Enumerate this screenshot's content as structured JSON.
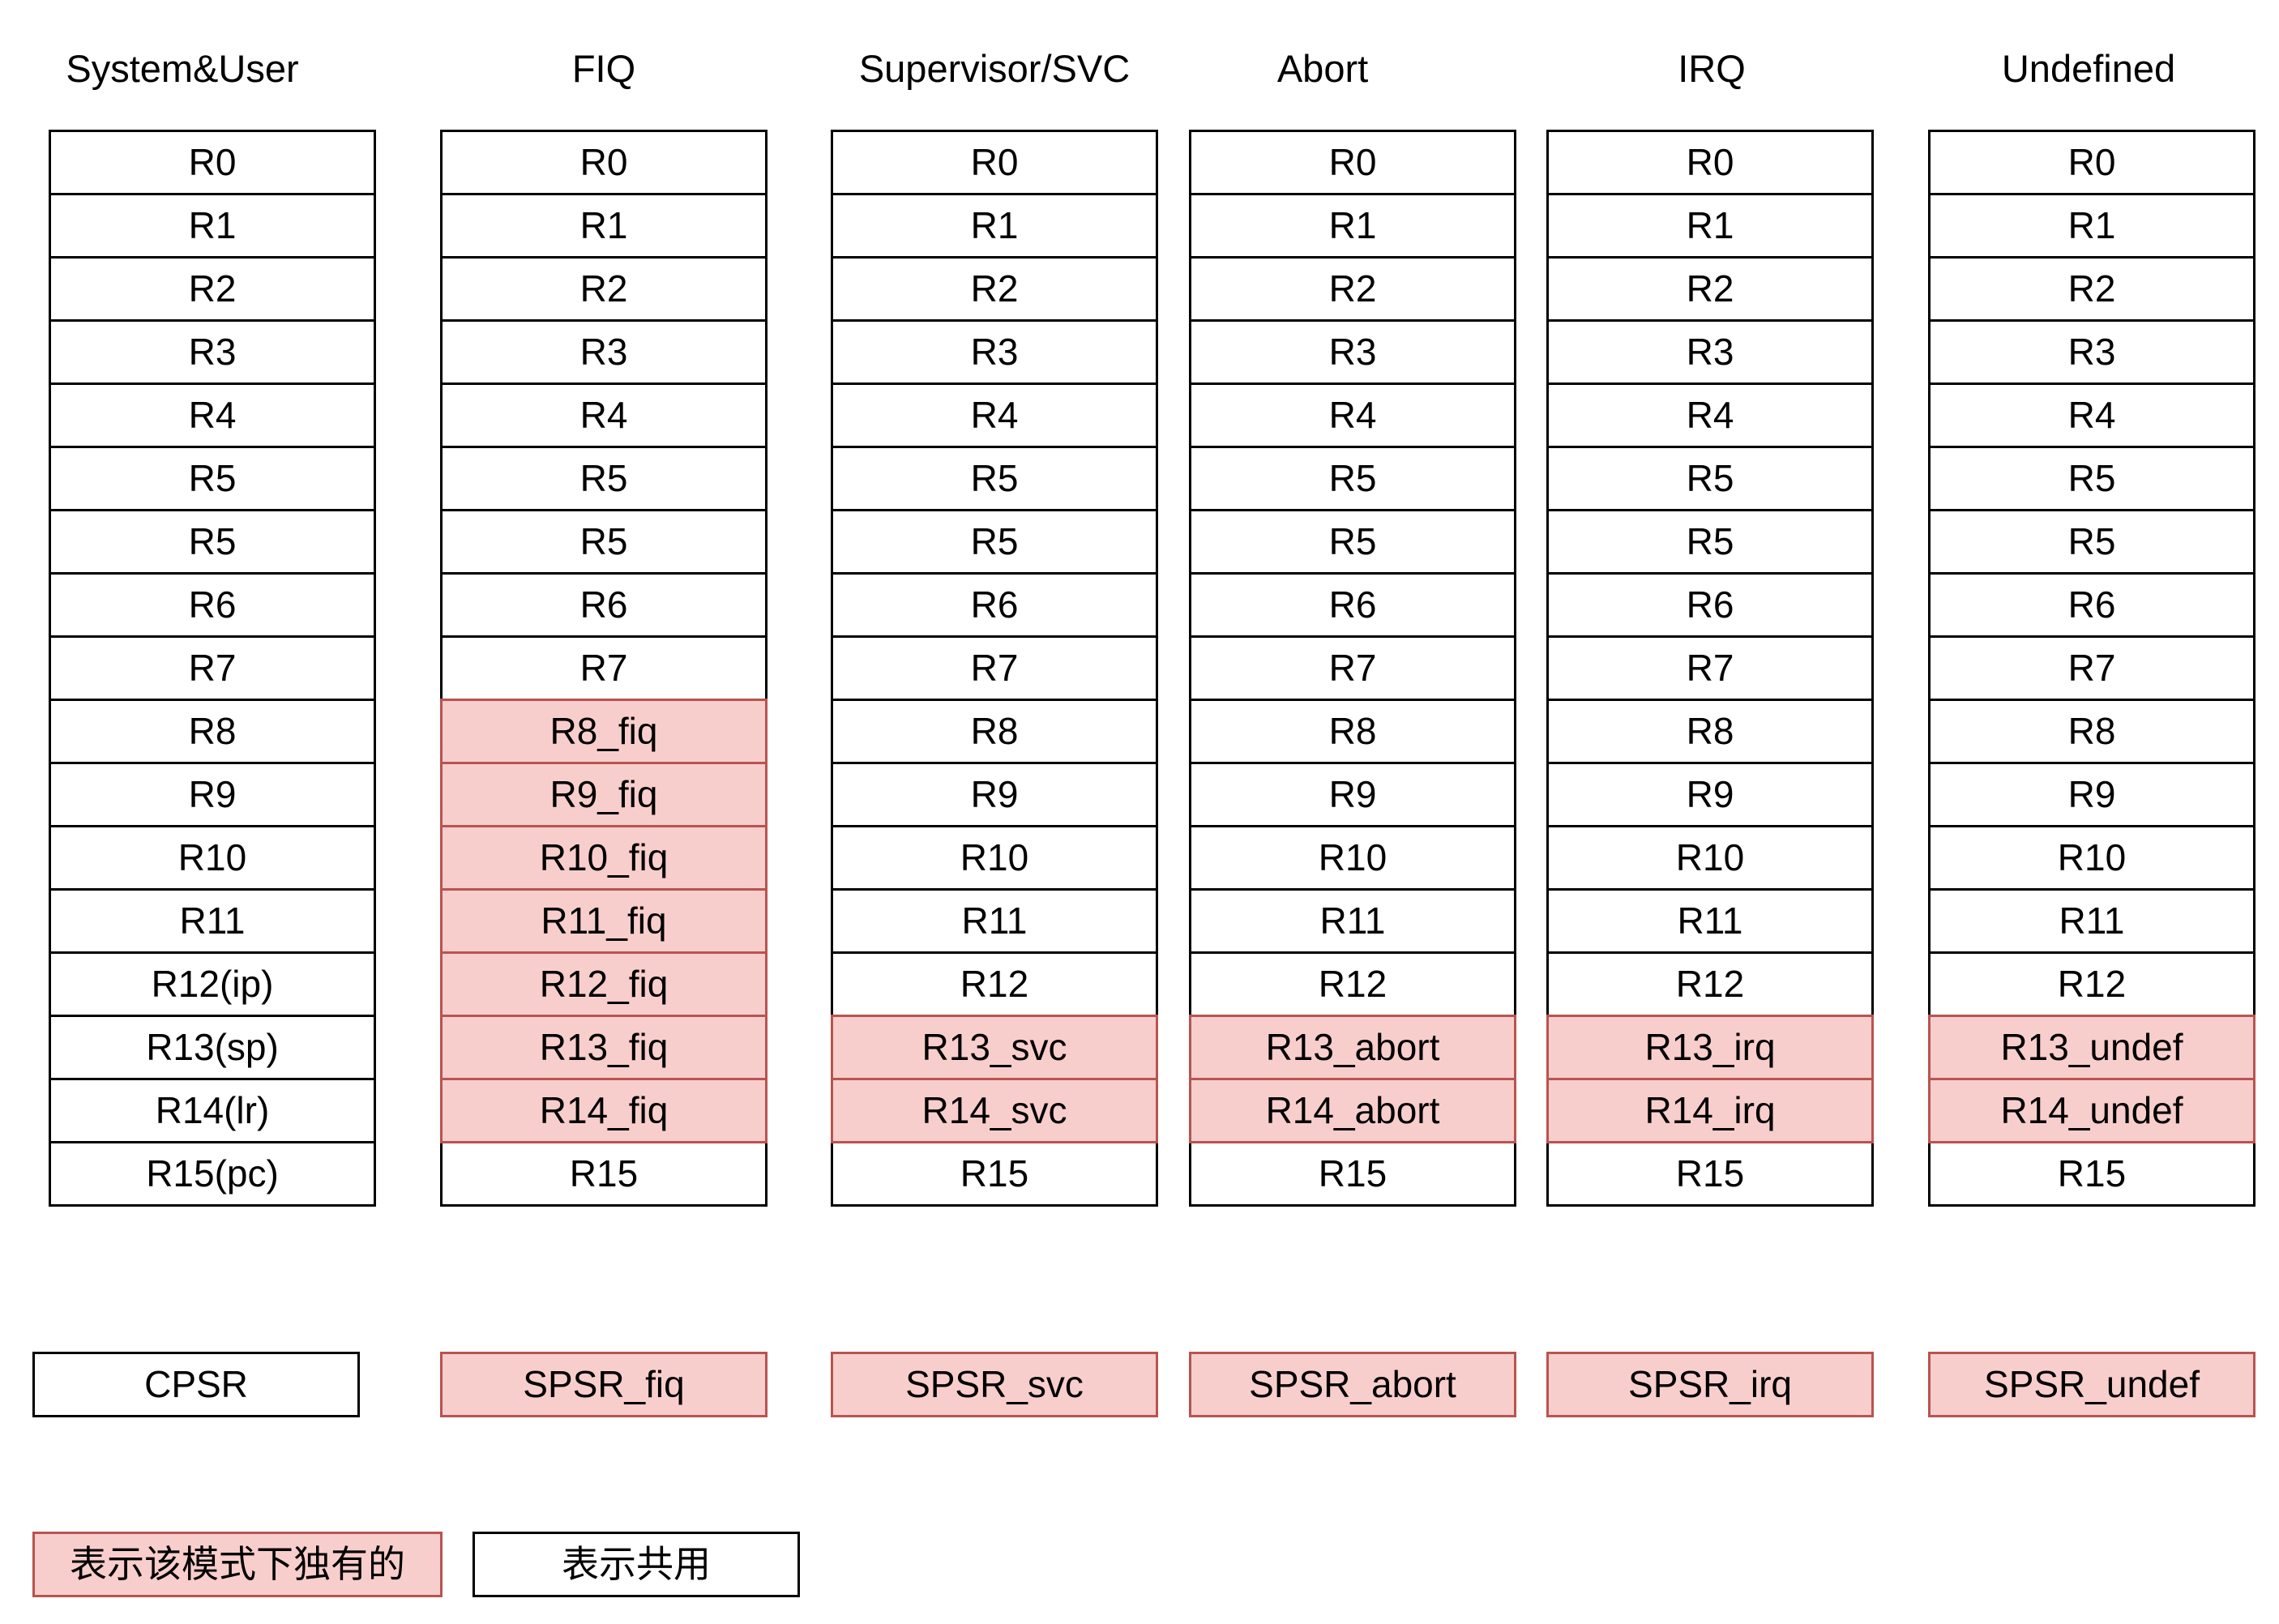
{
  "colors": {
    "banked_fill": "#f8cecc",
    "banked_border": "#b85450",
    "shared_fill": "#ffffff",
    "shared_border": "#000000"
  },
  "modes": [
    {
      "title": "System&User",
      "registers": [
        {
          "label": "R0",
          "banked": false
        },
        {
          "label": "R1",
          "banked": false
        },
        {
          "label": "R2",
          "banked": false
        },
        {
          "label": "R3",
          "banked": false
        },
        {
          "label": "R4",
          "banked": false
        },
        {
          "label": "R5",
          "banked": false
        },
        {
          "label": "R5",
          "banked": false
        },
        {
          "label": "R6",
          "banked": false
        },
        {
          "label": "R7",
          "banked": false
        },
        {
          "label": "R8",
          "banked": false
        },
        {
          "label": "R9",
          "banked": false
        },
        {
          "label": "R10",
          "banked": false
        },
        {
          "label": "R11",
          "banked": false
        },
        {
          "label": "R12(ip)",
          "banked": false
        },
        {
          "label": "R13(sp)",
          "banked": false
        },
        {
          "label": "R14(lr)",
          "banked": false
        },
        {
          "label": "R15(pc)",
          "banked": false
        }
      ],
      "psr": {
        "label": "CPSR",
        "banked": false
      }
    },
    {
      "title": "FIQ",
      "registers": [
        {
          "label": "R0",
          "banked": false
        },
        {
          "label": "R1",
          "banked": false
        },
        {
          "label": "R2",
          "banked": false
        },
        {
          "label": "R3",
          "banked": false
        },
        {
          "label": "R4",
          "banked": false
        },
        {
          "label": "R5",
          "banked": false
        },
        {
          "label": "R5",
          "banked": false
        },
        {
          "label": "R6",
          "banked": false
        },
        {
          "label": "R7",
          "banked": false
        },
        {
          "label": "R8_fiq",
          "banked": true
        },
        {
          "label": "R9_fiq",
          "banked": true
        },
        {
          "label": "R10_fiq",
          "banked": true
        },
        {
          "label": "R11_fiq",
          "banked": true
        },
        {
          "label": "R12_fiq",
          "banked": true
        },
        {
          "label": "R13_fiq",
          "banked": true
        },
        {
          "label": "R14_fiq",
          "banked": true
        },
        {
          "label": "R15",
          "banked": false
        }
      ],
      "psr": {
        "label": "SPSR_fiq",
        "banked": true
      }
    },
    {
      "title": "Supervisor/SVC",
      "registers": [
        {
          "label": "R0",
          "banked": false
        },
        {
          "label": "R1",
          "banked": false
        },
        {
          "label": "R2",
          "banked": false
        },
        {
          "label": "R3",
          "banked": false
        },
        {
          "label": "R4",
          "banked": false
        },
        {
          "label": "R5",
          "banked": false
        },
        {
          "label": "R5",
          "banked": false
        },
        {
          "label": "R6",
          "banked": false
        },
        {
          "label": "R7",
          "banked": false
        },
        {
          "label": "R8",
          "banked": false
        },
        {
          "label": "R9",
          "banked": false
        },
        {
          "label": "R10",
          "banked": false
        },
        {
          "label": "R11",
          "banked": false
        },
        {
          "label": "R12",
          "banked": false
        },
        {
          "label": "R13_svc",
          "banked": true
        },
        {
          "label": "R14_svc",
          "banked": true
        },
        {
          "label": "R15",
          "banked": false
        }
      ],
      "psr": {
        "label": "SPSR_svc",
        "banked": true
      }
    },
    {
      "title": "Abort",
      "registers": [
        {
          "label": "R0",
          "banked": false
        },
        {
          "label": "R1",
          "banked": false
        },
        {
          "label": "R2",
          "banked": false
        },
        {
          "label": "R3",
          "banked": false
        },
        {
          "label": "R4",
          "banked": false
        },
        {
          "label": "R5",
          "banked": false
        },
        {
          "label": "R5",
          "banked": false
        },
        {
          "label": "R6",
          "banked": false
        },
        {
          "label": "R7",
          "banked": false
        },
        {
          "label": "R8",
          "banked": false
        },
        {
          "label": "R9",
          "banked": false
        },
        {
          "label": "R10",
          "banked": false
        },
        {
          "label": "R11",
          "banked": false
        },
        {
          "label": "R12",
          "banked": false
        },
        {
          "label": "R13_abort",
          "banked": true
        },
        {
          "label": "R14_abort",
          "banked": true
        },
        {
          "label": "R15",
          "banked": false
        }
      ],
      "psr": {
        "label": "SPSR_abort",
        "banked": true
      }
    },
    {
      "title": "IRQ",
      "registers": [
        {
          "label": "R0",
          "banked": false
        },
        {
          "label": "R1",
          "banked": false
        },
        {
          "label": "R2",
          "banked": false
        },
        {
          "label": "R3",
          "banked": false
        },
        {
          "label": "R4",
          "banked": false
        },
        {
          "label": "R5",
          "banked": false
        },
        {
          "label": "R5",
          "banked": false
        },
        {
          "label": "R6",
          "banked": false
        },
        {
          "label": "R7",
          "banked": false
        },
        {
          "label": "R8",
          "banked": false
        },
        {
          "label": "R9",
          "banked": false
        },
        {
          "label": "R10",
          "banked": false
        },
        {
          "label": "R11",
          "banked": false
        },
        {
          "label": "R12",
          "banked": false
        },
        {
          "label": "R13_irq",
          "banked": true
        },
        {
          "label": "R14_irq",
          "banked": true
        },
        {
          "label": "R15",
          "banked": false
        }
      ],
      "psr": {
        "label": "SPSR_irq",
        "banked": true
      }
    },
    {
      "title": "Undefined",
      "registers": [
        {
          "label": "R0",
          "banked": false
        },
        {
          "label": "R1",
          "banked": false
        },
        {
          "label": "R2",
          "banked": false
        },
        {
          "label": "R3",
          "banked": false
        },
        {
          "label": "R4",
          "banked": false
        },
        {
          "label": "R5",
          "banked": false
        },
        {
          "label": "R5",
          "banked": false
        },
        {
          "label": "R6",
          "banked": false
        },
        {
          "label": "R7",
          "banked": false
        },
        {
          "label": "R8",
          "banked": false
        },
        {
          "label": "R9",
          "banked": false
        },
        {
          "label": "R10",
          "banked": false
        },
        {
          "label": "R11",
          "banked": false
        },
        {
          "label": "R12",
          "banked": false
        },
        {
          "label": "R13_undef",
          "banked": true
        },
        {
          "label": "R14_undef",
          "banked": true
        },
        {
          "label": "R15",
          "banked": false
        }
      ],
      "psr": {
        "label": "SPSR_undef",
        "banked": true
      }
    }
  ],
  "legend": {
    "banked_label": "表示该模式下独有的",
    "shared_label": "表示共用"
  }
}
